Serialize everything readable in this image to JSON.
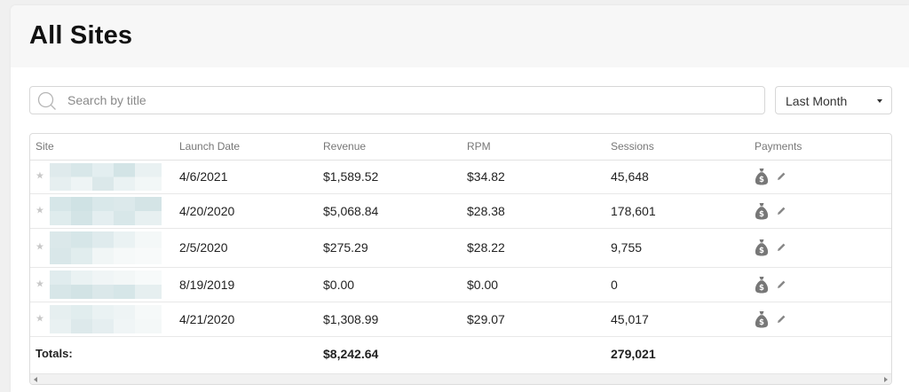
{
  "page": {
    "title": "All Sites"
  },
  "search": {
    "placeholder": "Search by title",
    "value": ""
  },
  "period_select": {
    "selected": "Last Month"
  },
  "table": {
    "headers": {
      "site": "Site",
      "launch_date": "Launch Date",
      "revenue": "Revenue",
      "rpm": "RPM",
      "sessions": "Sessions",
      "payments": "Payments"
    },
    "rows": [
      {
        "launch_date": "4/6/2021",
        "revenue": "$1,589.52",
        "rpm": "$34.82",
        "sessions": "45,648"
      },
      {
        "launch_date": "4/20/2020",
        "revenue": "$5,068.84",
        "rpm": "$28.38",
        "sessions": "178,601"
      },
      {
        "launch_date": "2/5/2020",
        "revenue": "$275.29",
        "rpm": "$28.22",
        "sessions": "9,755"
      },
      {
        "launch_date": "8/19/2019",
        "revenue": "$0.00",
        "rpm": "$0.00",
        "sessions": "0"
      },
      {
        "launch_date": "4/21/2020",
        "revenue": "$1,308.99",
        "rpm": "$29.07",
        "sessions": "45,017"
      }
    ],
    "totals": {
      "label": "Totals:",
      "revenue": "$8,242.64",
      "sessions": "279,021"
    }
  },
  "icons": {
    "favorite": "star-icon",
    "payment": "money-bag-icon",
    "edit": "pencil-icon",
    "search": "search-icon",
    "dropdown": "caret-down-icon"
  },
  "colors": {
    "header_bg": "#f7f7f7",
    "star": "#c8c8c8",
    "icon_gray": "#777777",
    "site_thumb": "#d9e8ea"
  }
}
